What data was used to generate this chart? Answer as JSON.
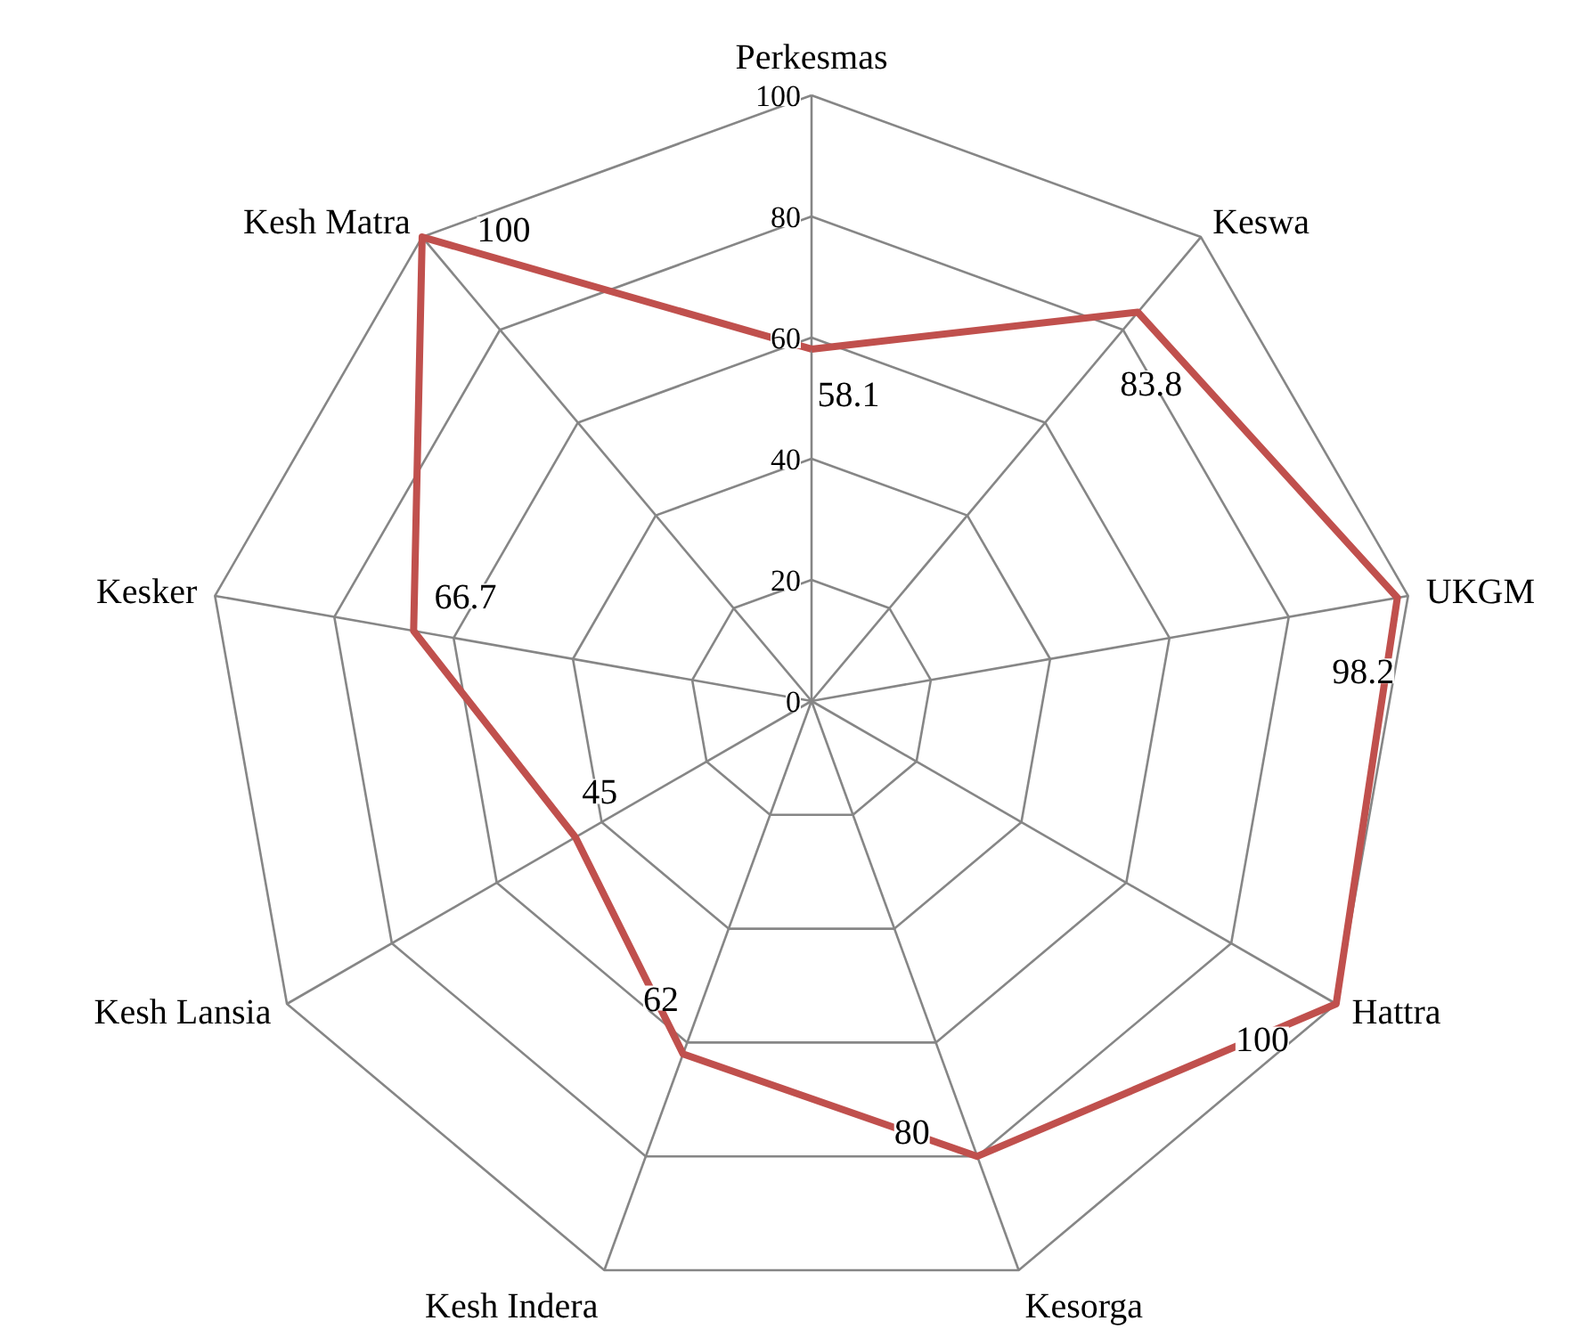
{
  "chart_data": {
    "type": "radar",
    "categories": [
      "Perkesmas",
      "Keswa",
      "UKGM",
      "Hattra",
      "Kesorga",
      "Kesh Indera",
      "Kesh Lansia",
      "Kesker",
      "Kesh Matra"
    ],
    "series": [
      {
        "color": "#c0504d",
        "values": [
          58.1,
          83.8,
          98.2,
          100,
          80,
          62,
          45,
          66.7,
          100
        ]
      }
    ],
    "ylim": [
      0,
      100
    ],
    "yticks": [
      0,
      20,
      40,
      60,
      80,
      100
    ],
    "grid": true,
    "data_labels": true
  }
}
